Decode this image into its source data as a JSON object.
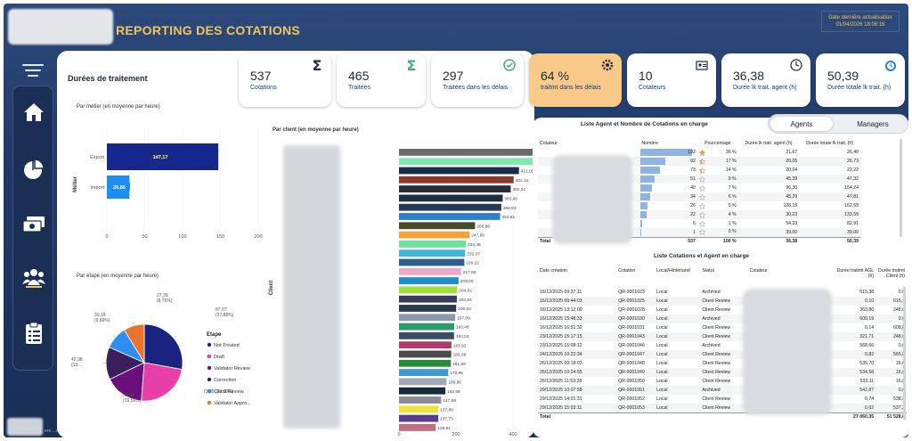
{
  "header": {
    "title": "REPORTING DES COTATIONS",
    "updated_label": "Date dernière actualisation",
    "updated_value": "01/04/2026 18:06:16"
  },
  "footer": {
    "text": "ere....ved."
  },
  "colors": {
    "navy": "#1f3864",
    "gold": "#f2c55a",
    "active_kpi": "#f9c98a"
  },
  "nav": {
    "menu_icon": "hamburger-icon",
    "items": [
      {
        "name": "home-icon"
      },
      {
        "name": "pie-chart-icon"
      },
      {
        "name": "money-icon"
      },
      {
        "name": "team-icon"
      },
      {
        "name": "clipboard-icon"
      }
    ]
  },
  "kpis": [
    {
      "value": "537",
      "label": "Cotations",
      "icon": "sigma-icon"
    },
    {
      "value": "465",
      "label": "Traitées",
      "icon": "sigma-green-icon"
    },
    {
      "value": "297",
      "label": "Traitées dans les délais",
      "icon": "check-circle-icon"
    },
    {
      "value": "64 %",
      "label": "traitmt dans les délais",
      "icon": "gear-icon"
    },
    {
      "value": "10",
      "label": "Cotateurs",
      "icon": "id-card-icon"
    },
    {
      "value": "36,38",
      "label": "Durée lk trait. agent (h)",
      "icon": "clock-icon"
    },
    {
      "value": "50,39",
      "label": "Durée totale lk trait. (h)",
      "icon": "timer-icon"
    }
  ],
  "left": {
    "title": "Durées de traitement",
    "metier_title": "Par métier (en moyenne par heure)",
    "etape_title": "Par étape (en moyenne par heure)",
    "client_title": "Par client (en moyenne par heure)"
  },
  "chart_data": [
    {
      "type": "bar",
      "orientation": "horizontal",
      "title": "Par métier (en moyenne par heure)",
      "ylabel": "Métier",
      "categories": [
        "Export",
        "Import"
      ],
      "values": [
        147.17,
        29.86
      ],
      "value_labels": [
        "147,17",
        "29,86"
      ],
      "xlim": [
        0,
        200
      ],
      "ticks": [
        "0",
        "50",
        "100",
        "150",
        "200"
      ],
      "colors": [
        "#15288e",
        "#1b8ef0"
      ]
    },
    {
      "type": "pie",
      "title": "Par étape (en moyenne par heure)",
      "legend_title": "Etape",
      "legend_position": "right",
      "slices": [
        {
          "name": "Not Treated",
          "value": 87.07,
          "label": "87,07",
          "pct_label": "(27,88%)",
          "color": "#1a237e"
        },
        {
          "name": "Draft",
          "value": 73.05,
          "label": "73,05 (23,39%)",
          "pct_label": "",
          "color": "#e83ea8"
        },
        {
          "name": "Validator Review",
          "value": 51.84,
          "label": "51,84",
          "pct_label": "(16,59%)",
          "color": "#6a0f7a"
        },
        {
          "name": "Correction",
          "value": 42.98,
          "label": "42,98",
          "pct_label": "(13....",
          "color": "#3b1f5c"
        },
        {
          "name": "Client Review",
          "value": 30.18,
          "label": "30,18",
          "pct_label": "(9,66%)",
          "color": "#2d8df0"
        },
        {
          "name": "Validator Appro...",
          "value": 27.39,
          "label": "27,39",
          "pct_label": "(8,76%)",
          "color": "#e8742e"
        }
      ]
    },
    {
      "type": "bar",
      "orientation": "horizontal",
      "title": "Par client (en moyenne par heure)",
      "ylabel": "Client",
      "values": [
        535.7,
        534.58,
        421.05,
        402.31,
        392.01,
        363.8,
        358.93,
        354.81,
        266.86,
        247.69,
        234.48,
        232.07,
        229.22,
        217.8,
        209.0,
        204.02,
        202.94,
        200.63,
        197.09,
        193.48,
        193.24,
        183.92,
        183.09,
        181.89,
        172.65,
        166.8,
        162.69,
        147.88,
        137.88,
        137.73,
        128.91
      ],
      "value_labels": [
        "535,70",
        "534,58",
        "421,05",
        "402,31",
        "392,01",
        "363,80",
        "358,93",
        "354,81",
        "266,86",
        "247,69",
        "234,48",
        "232,07",
        "229,22",
        "217,80",
        "209,00",
        "204,02",
        "202,94",
        "200,63",
        "197,09",
        "193,48",
        "193,24",
        "183,92",
        "183,09",
        "181,89",
        "172,65",
        "166,80",
        "162,69",
        "147,88",
        "137,88",
        "137,73",
        "128,91"
      ],
      "colors": [
        "#6b6b6b",
        "#7de8b0",
        "#1c2a4a",
        "#8a3b2e",
        "#2a2a3a",
        "#1f2e3e",
        "#243a52",
        "#2f7fd0",
        "#4a4a2a",
        "#f4a23a",
        "#6fe0a0",
        "#3fb8d8",
        "#2e5f8a",
        "#f0a8c8",
        "#1f8ed0",
        "#a0e03a",
        "#3a3a5a",
        "#2a3a4a",
        "#8a9aa8",
        "#2f9a6a",
        "#3a4a6a",
        "#b03a6a",
        "#4a4a4a",
        "#2a8a3a",
        "#3f9ad0",
        "#a0a8b8",
        "#1a2a3a",
        "#8a8a9a",
        "#f0e03a",
        "#5a3a8a",
        "#c07080"
      ],
      "xlim": [
        0,
        800
      ],
      "ticks": [
        "0",
        "200",
        "400",
        "600",
        "800"
      ]
    }
  ],
  "toggle": {
    "agents": "Agents",
    "managers": "Managers"
  },
  "agents_table": {
    "title": "Liste Agent et Nombre de Cotations en charge",
    "columns": [
      "Cotateur",
      "Nombre",
      "Pourcentage",
      "Durée lk trait. agent (h)",
      "Durée totale lk trait. (h)"
    ],
    "rows": [
      {
        "n": "192",
        "pct": "36 %",
        "d1": "21,67",
        "d2": "26,40",
        "stars": 1.0
      },
      {
        "n": "92",
        "pct": "17 %",
        "d1": "20,05",
        "d2": "26,73",
        "stars": 0.5
      },
      {
        "n": "73",
        "pct": "14 %",
        "d1": "20,04",
        "d2": "22,22",
        "stars": 0.4
      },
      {
        "n": "51",
        "pct": "9 %",
        "d1": "45,39",
        "d2": "47,32",
        "stars": 0
      },
      {
        "n": "40",
        "pct": "7 %",
        "d1": "96,30",
        "d2": "154,24",
        "stars": 0
      },
      {
        "n": "34",
        "pct": "6 %",
        "d1": "45,29",
        "d2": "47,81",
        "stars": 0
      },
      {
        "n": "26",
        "pct": "5 %",
        "d1": "128,15",
        "d2": "162,59",
        "stars": 0
      },
      {
        "n": "22",
        "pct": "4 %",
        "d1": "30,23",
        "d2": "133,59",
        "stars": 0
      },
      {
        "n": "6",
        "pct": "1 %",
        "d1": "54,33",
        "d2": "82,91",
        "stars": 0
      },
      {
        "n": "1",
        "pct": "0 %",
        "d1": "39,00",
        "d2": "39,00",
        "stars": 0
      }
    ],
    "total": {
      "label": "Total",
      "n": "537",
      "pct": "100 %",
      "d1": "36,38",
      "d2": "50,39"
    }
  },
  "cotations_table": {
    "title": "Liste Cotations et Agent en charge",
    "columns": [
      "Date création",
      "Cotation",
      "Local/Hinterland",
      "Statut",
      "Cotateur",
      "Durée traitmt AGL (h)",
      "Durée traitmt Client (h)"
    ],
    "rows": [
      {
        "date": "16/12/2025 09:37:11",
        "cot": "QR-0001023",
        "loc": "Local",
        "stat": "Archived",
        "d1": "615,38",
        "d2": "0,0"
      },
      {
        "date": "16/12/2025 09:44:03",
        "cot": "QR-0001025",
        "loc": "Local",
        "stat": "Client Review",
        "d1": "0,10",
        "d2": "615,1"
      },
      {
        "date": "16/12/2025 13:12:09",
        "cot": "QR-0001028",
        "loc": "Local",
        "stat": "Client Review",
        "d1": "363,80",
        "d2": "248,0"
      },
      {
        "date": "16/12/2025 15:48:33",
        "cot": "QR-0001030",
        "loc": "Local",
        "stat": "Archived",
        "d1": "609,19",
        "d2": "0,0"
      },
      {
        "date": "16/12/2025 16:51:32",
        "cot": "QR-0001031",
        "loc": "Local",
        "stat": "Client Review",
        "d1": "0,14",
        "d2": "608,0"
      },
      {
        "date": "23/12/2025 15:17:15",
        "cot": "QR-0001043",
        "loc": "Local",
        "stat": "Client Review",
        "d1": "321,71",
        "d2": "248,0"
      },
      {
        "date": "23/12/2025 16:08:12",
        "cot": "QR-0001046",
        "loc": "Local",
        "stat": "Archived",
        "d1": "568,66",
        "d2": "0,0"
      },
      {
        "date": "24/12/2025 10:22:34",
        "cot": "QR-0001047",
        "loc": "Local",
        "stat": "Client Review",
        "d1": "0,82",
        "d2": "565,8"
      },
      {
        "date": "26/12/2025 09:18:03",
        "cot": "QR-0001048",
        "loc": "Local",
        "stat": "Client Review",
        "d1": "535,70",
        "d2": "16,0"
      },
      {
        "date": "26/12/2025 10:24:55",
        "cot": "QR-0001049",
        "loc": "Local",
        "stat": "Client Review",
        "d1": "534,58",
        "d2": "16,0"
      },
      {
        "date": "26/12/2025 11:53:28",
        "cot": "QR-0001050",
        "loc": "Local",
        "stat": "Client Review",
        "d1": "533,11",
        "d2": "16,0"
      },
      {
        "date": "29/12/2025 10:07:58",
        "cot": "QR-0001051",
        "loc": "Local",
        "stat": "Archived",
        "d1": "542,87",
        "d2": "0,0"
      },
      {
        "date": "29/12/2025 14:01:31",
        "cot": "QR-0001052",
        "loc": "Local",
        "stat": "Client Review",
        "d1": "0,74",
        "d2": "538,2"
      },
      {
        "date": "29/12/2025 15:03:11",
        "cot": "QR-0001053",
        "loc": "Local",
        "stat": "Client Review",
        "d1": "0,62",
        "d2": "537,2"
      }
    ],
    "total": {
      "label": "Total",
      "d1": "27 060,35",
      "d2": "51 528,0"
    }
  }
}
